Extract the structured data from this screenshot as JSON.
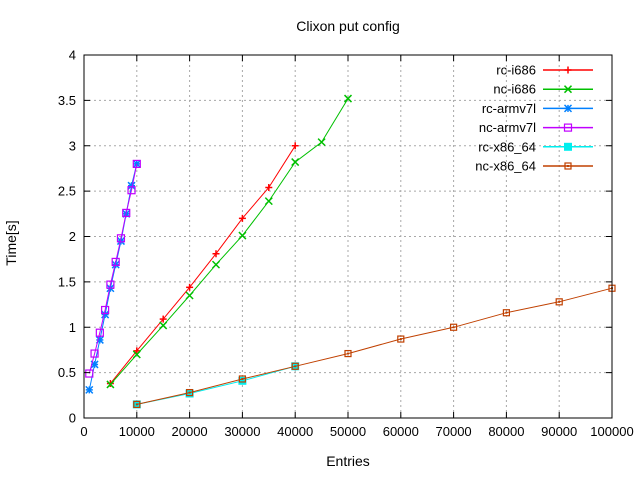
{
  "chart_data": {
    "type": "line",
    "title": "Clixon put config",
    "xlabel": "Entries",
    "ylabel": "Time[s]",
    "xlim": [
      0,
      100000
    ],
    "ylim": [
      0,
      4
    ],
    "xticks": [
      0,
      10000,
      20000,
      30000,
      40000,
      50000,
      60000,
      70000,
      80000,
      90000,
      100000
    ],
    "yticks": [
      0,
      0.5,
      1,
      1.5,
      2,
      2.5,
      3,
      3.5,
      4
    ],
    "grid": true,
    "grid_color": "#a8a8a8",
    "border_color": "#000000",
    "legend_position": "top-right-inside",
    "series": [
      {
        "name": "rc-i686",
        "color": "#ff0000",
        "marker": "plus",
        "points": [
          [
            5000,
            0.38
          ],
          [
            10000,
            0.74
          ],
          [
            15000,
            1.09
          ],
          [
            20000,
            1.44
          ],
          [
            25000,
            1.81
          ],
          [
            30000,
            2.2
          ],
          [
            35000,
            2.54
          ],
          [
            40000,
            3.0
          ]
        ]
      },
      {
        "name": "nc-i686",
        "color": "#00c000",
        "marker": "cross",
        "points": [
          [
            5000,
            0.37
          ],
          [
            10000,
            0.7
          ],
          [
            15000,
            1.02
          ],
          [
            20000,
            1.35
          ],
          [
            25000,
            1.69
          ],
          [
            30000,
            2.01
          ],
          [
            35000,
            2.39
          ],
          [
            40000,
            2.82
          ],
          [
            45000,
            3.04
          ],
          [
            50000,
            3.52
          ]
        ]
      },
      {
        "name": "rc-armv7l",
        "color": "#0080ff",
        "marker": "star",
        "points": [
          [
            1000,
            0.31
          ],
          [
            2000,
            0.59
          ],
          [
            3000,
            0.86
          ],
          [
            4000,
            1.14
          ],
          [
            5000,
            1.43
          ],
          [
            6000,
            1.69
          ],
          [
            7000,
            1.95
          ],
          [
            8000,
            2.25
          ],
          [
            9000,
            2.56
          ],
          [
            10000,
            2.8
          ]
        ]
      },
      {
        "name": "nc-armv7l",
        "color": "#c000ff",
        "marker": "square-open",
        "points": [
          [
            1000,
            0.49
          ],
          [
            2000,
            0.71
          ],
          [
            3000,
            0.94
          ],
          [
            4000,
            1.19
          ],
          [
            5000,
            1.47
          ],
          [
            6000,
            1.72
          ],
          [
            7000,
            1.98
          ],
          [
            8000,
            2.26
          ],
          [
            9000,
            2.51
          ],
          [
            10000,
            2.8
          ]
        ]
      },
      {
        "name": "rc-x86_64",
        "color": "#00eeee",
        "marker": "square-filled",
        "points": [
          [
            10000,
            0.15
          ],
          [
            20000,
            0.27
          ],
          [
            30000,
            0.41
          ],
          [
            40000,
            0.57
          ]
        ]
      },
      {
        "name": "nc-x86_64",
        "color": "#c04000",
        "marker": "square-dot",
        "points": [
          [
            10000,
            0.15
          ],
          [
            20000,
            0.28
          ],
          [
            30000,
            0.43
          ],
          [
            40000,
            0.57
          ],
          [
            50000,
            0.71
          ],
          [
            60000,
            0.87
          ],
          [
            70000,
            1.0
          ],
          [
            80000,
            1.16
          ],
          [
            90000,
            1.28
          ],
          [
            100000,
            1.43
          ]
        ]
      }
    ]
  }
}
